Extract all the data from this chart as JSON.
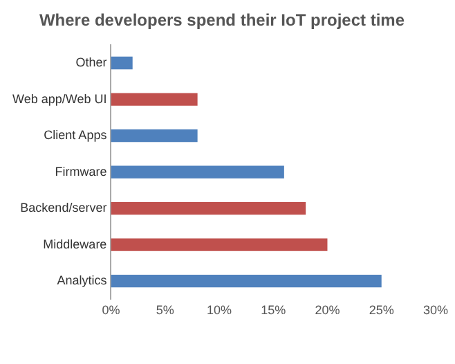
{
  "chart_data": {
    "type": "bar",
    "orientation": "horizontal",
    "title": "Where developers spend their IoT project time",
    "categories": [
      "Other",
      "Web app/Web UI",
      "Client Apps",
      "Firmware",
      "Backend/server",
      "Middleware",
      "Analytics"
    ],
    "values": [
      2,
      8,
      8,
      16,
      18,
      20,
      25
    ],
    "colors": [
      "#4f81bd",
      "#c0504d",
      "#4f81bd",
      "#4f81bd",
      "#c0504d",
      "#c0504d",
      "#4f81bd"
    ],
    "xlim": [
      0,
      30
    ],
    "xticks": [
      {
        "value": 0,
        "label": "0%"
      },
      {
        "value": 5,
        "label": "5%"
      },
      {
        "value": 10,
        "label": "10%"
      },
      {
        "value": 15,
        "label": "15%"
      },
      {
        "value": 20,
        "label": "20%"
      },
      {
        "value": 25,
        "label": "25%"
      },
      {
        "value": 30,
        "label": "30%"
      }
    ],
    "grid": false,
    "legend": false
  }
}
